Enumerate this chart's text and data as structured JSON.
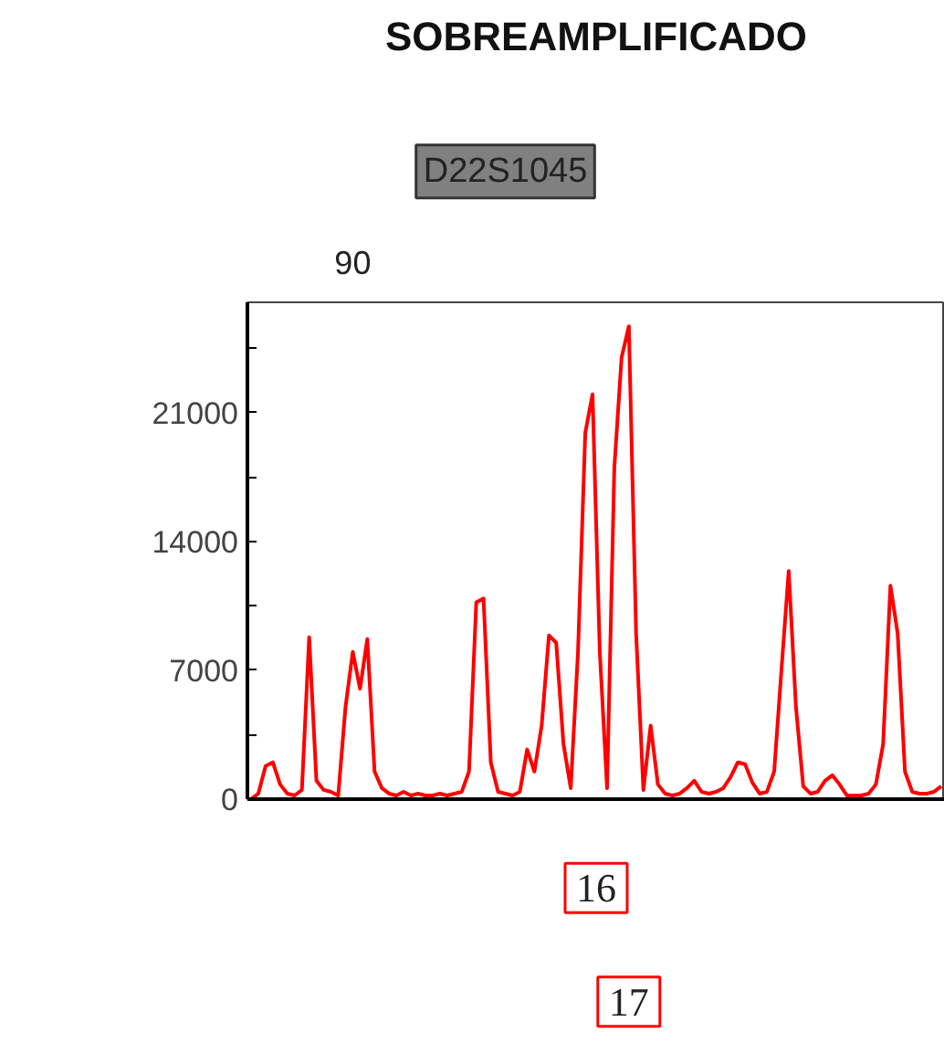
{
  "chart_data": {
    "type": "line",
    "title": "SOBREAMPLIFICADO",
    "annotations": [
      "D22S1045",
      "90",
      "16",
      "17"
    ],
    "categories": [
      null,
      null,
      null,
      null,
      null,
      null,
      null,
      null,
      null,
      null,
      null,
      null,
      null,
      null,
      null,
      null,
      null,
      null,
      null,
      null,
      null,
      null,
      null,
      null,
      null,
      null,
      null,
      null,
      null,
      null,
      null,
      null,
      null,
      null,
      null,
      null,
      null,
      null,
      null,
      null,
      null,
      null,
      null,
      null,
      null,
      null,
      null,
      null,
      null,
      null,
      null,
      null,
      null,
      null,
      null,
      null,
      null,
      null,
      null,
      null,
      null,
      null,
      null,
      null,
      null,
      null,
      null,
      null,
      null,
      null,
      null,
      null,
      null,
      null,
      null,
      null,
      null,
      null,
      null,
      null,
      null,
      null,
      null,
      null,
      null,
      null,
      null,
      null,
      null,
      null,
      null,
      null,
      null,
      null,
      null,
      null
    ],
    "series": [
      {
        "color": "#ff0000",
        "values": [
          0,
          300,
          1800,
          2000,
          800,
          300,
          200,
          500,
          8800,
          1000,
          500,
          400,
          200,
          5000,
          8000,
          6000,
          8700,
          1500,
          600,
          300,
          200,
          400,
          200,
          300,
          200,
          200,
          300,
          200,
          300,
          400,
          1500,
          10700,
          10900,
          2000,
          400,
          300,
          200,
          400,
          2700,
          1500,
          4000,
          8900,
          8500,
          3000,
          600,
          8000,
          19900,
          22000,
          8000,
          600,
          18000,
          24000,
          25700,
          9000,
          500,
          4000,
          800,
          300,
          200,
          300,
          600,
          1000,
          400,
          300,
          400,
          600,
          1200,
          2000,
          1900,
          900,
          300,
          400,
          1500,
          7000,
          12400,
          5000,
          700,
          300,
          400,
          1000,
          1300,
          800,
          200,
          200,
          200,
          300,
          800,
          3000,
          11600,
          9000,
          1500,
          400,
          300,
          300,
          400,
          700
        ]
      }
    ],
    "ylim": [
      0,
      27000
    ],
    "yticks": [
      0,
      {
        "value": 3500,
        "label": null
      },
      7000,
      {
        "value": 10500,
        "label": null
      },
      14000,
      {
        "value": 17500,
        "label": null
      },
      21000,
      {
        "value": 24500,
        "label": null
      }
    ],
    "grid": false,
    "tick_labels": "y",
    "marker": "none",
    "line_style": "solid"
  }
}
